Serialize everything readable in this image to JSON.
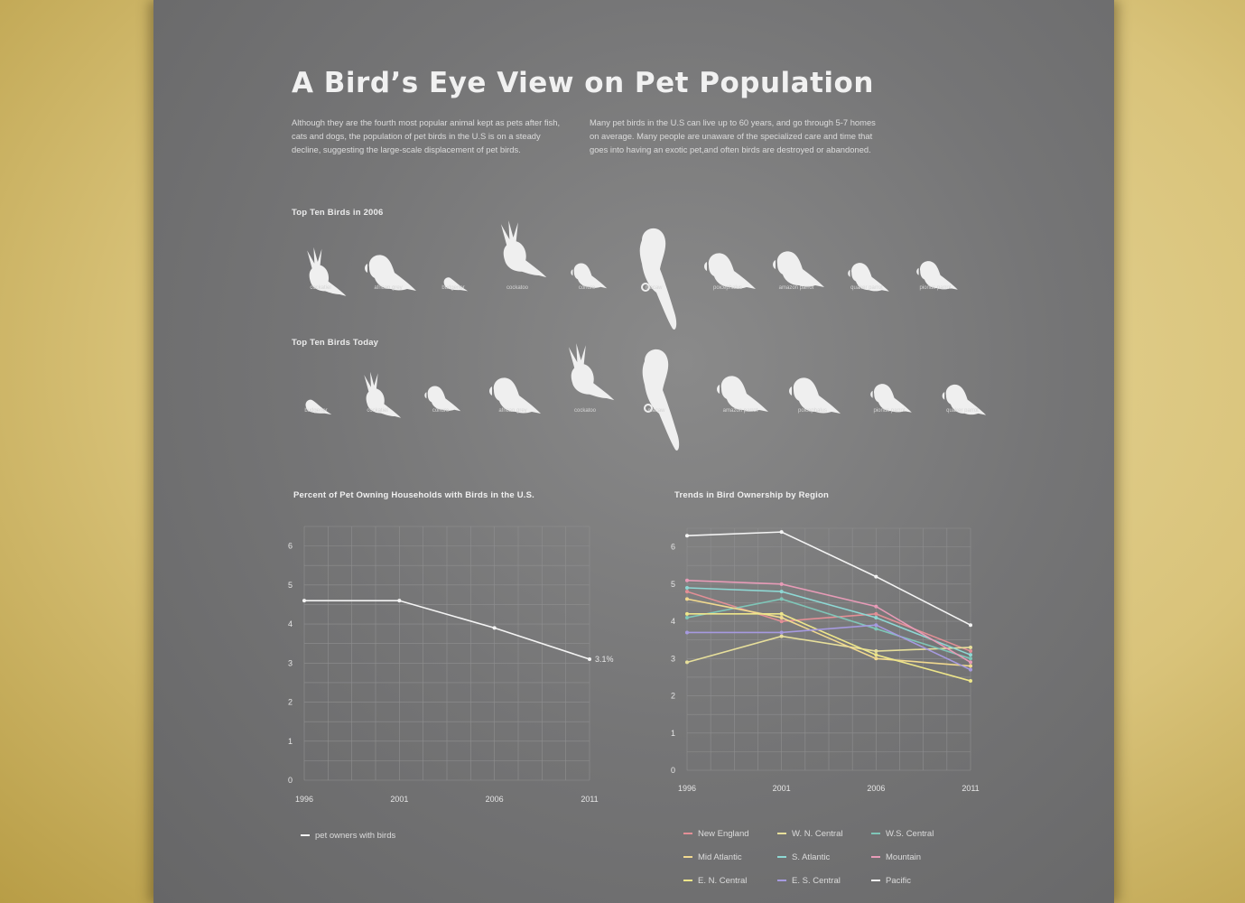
{
  "header": {
    "title": "A Bird’s Eye View on Pet Population",
    "intro_left": "Although they are the fourth most popular animal kept as pets after fish, cats and dogs, the population of pet birds in the U.S is on a steady decline, suggesting the large-scale displacement of pet birds.",
    "intro_right": "Many pet birds in the U.S can live up to 60 years, and go through 5-7 homes on average. Many people are unaware of the specialized care and time that goes into having an exotic pet,and often birds are destroyed or abandoned."
  },
  "birds_2006": {
    "label": "Top Ten Birds in 2006",
    "items": [
      "cockatiel",
      "african grey",
      "budgerier",
      "cockatoo",
      "conure",
      "macaw",
      "poicephalus",
      "amazon parrot",
      "quaker parrot",
      "pionus parrot"
    ]
  },
  "birds_today": {
    "label": "Top Ten Birds Today",
    "items": [
      "budgerier",
      "cockatiel",
      "conure",
      "african grey",
      "cockatoo",
      "macaw",
      "amazon parrot",
      "poicephalus",
      "pionus parrot",
      "quaker parrot"
    ]
  },
  "colors": {
    "line": "#f4f4f4",
    "grid": "#8f8f90",
    "text": "#e6e6e6"
  },
  "chart_data": [
    {
      "type": "line",
      "title": "Percent of Pet Owning Households with Birds in the U.S.",
      "x": [
        "1996",
        "2001",
        "2006",
        "2011"
      ],
      "yticks": [
        0,
        1,
        2,
        3,
        4,
        5,
        6
      ],
      "ylim": [
        0,
        6.5
      ],
      "grid": true,
      "series": [
        {
          "name": "pet owners with birds",
          "values": [
            4.6,
            4.6,
            3.9,
            3.1
          ],
          "color": "#f4f4f4",
          "end_label": "3.1%"
        }
      ],
      "legend_position": "bottom-left"
    },
    {
      "type": "line",
      "title": "Trends in Bird Ownership by Region",
      "x": [
        "1996",
        "2001",
        "2006",
        "2011"
      ],
      "yticks": [
        0,
        1,
        2,
        3,
        4,
        5,
        6
      ],
      "ylim": [
        0,
        6.5
      ],
      "grid": true,
      "series": [
        {
          "name": "New England",
          "values": [
            4.8,
            4.0,
            4.2,
            3.2
          ],
          "color": "#e38f96"
        },
        {
          "name": "W. N. Central",
          "values": [
            2.9,
            3.6,
            3.2,
            3.3
          ],
          "color": "#e7df9b"
        },
        {
          "name": "W.S. Central",
          "values": [
            4.1,
            4.6,
            3.8,
            3.0
          ],
          "color": "#7fc6b8"
        },
        {
          "name": "Mid Atlantic",
          "values": [
            4.6,
            4.1,
            3.0,
            2.8
          ],
          "color": "#f1d98f"
        },
        {
          "name": "S. Atlantic",
          "values": [
            4.9,
            4.8,
            4.1,
            3.1
          ],
          "color": "#8ed8d4"
        },
        {
          "name": "Mountain",
          "values": [
            5.1,
            5.0,
            4.4,
            2.9
          ],
          "color": "#e79bb7"
        },
        {
          "name": "E. N. Central",
          "values": [
            4.2,
            4.2,
            3.1,
            2.4
          ],
          "color": "#eee68a"
        },
        {
          "name": "E. S. Central",
          "values": [
            3.7,
            3.7,
            3.9,
            2.7
          ],
          "color": "#a69ae0"
        },
        {
          "name": "Pacific",
          "values": [
            6.3,
            6.4,
            5.2,
            3.9
          ],
          "color": "#f4f4f4"
        }
      ],
      "legend_position": "bottom"
    }
  ]
}
